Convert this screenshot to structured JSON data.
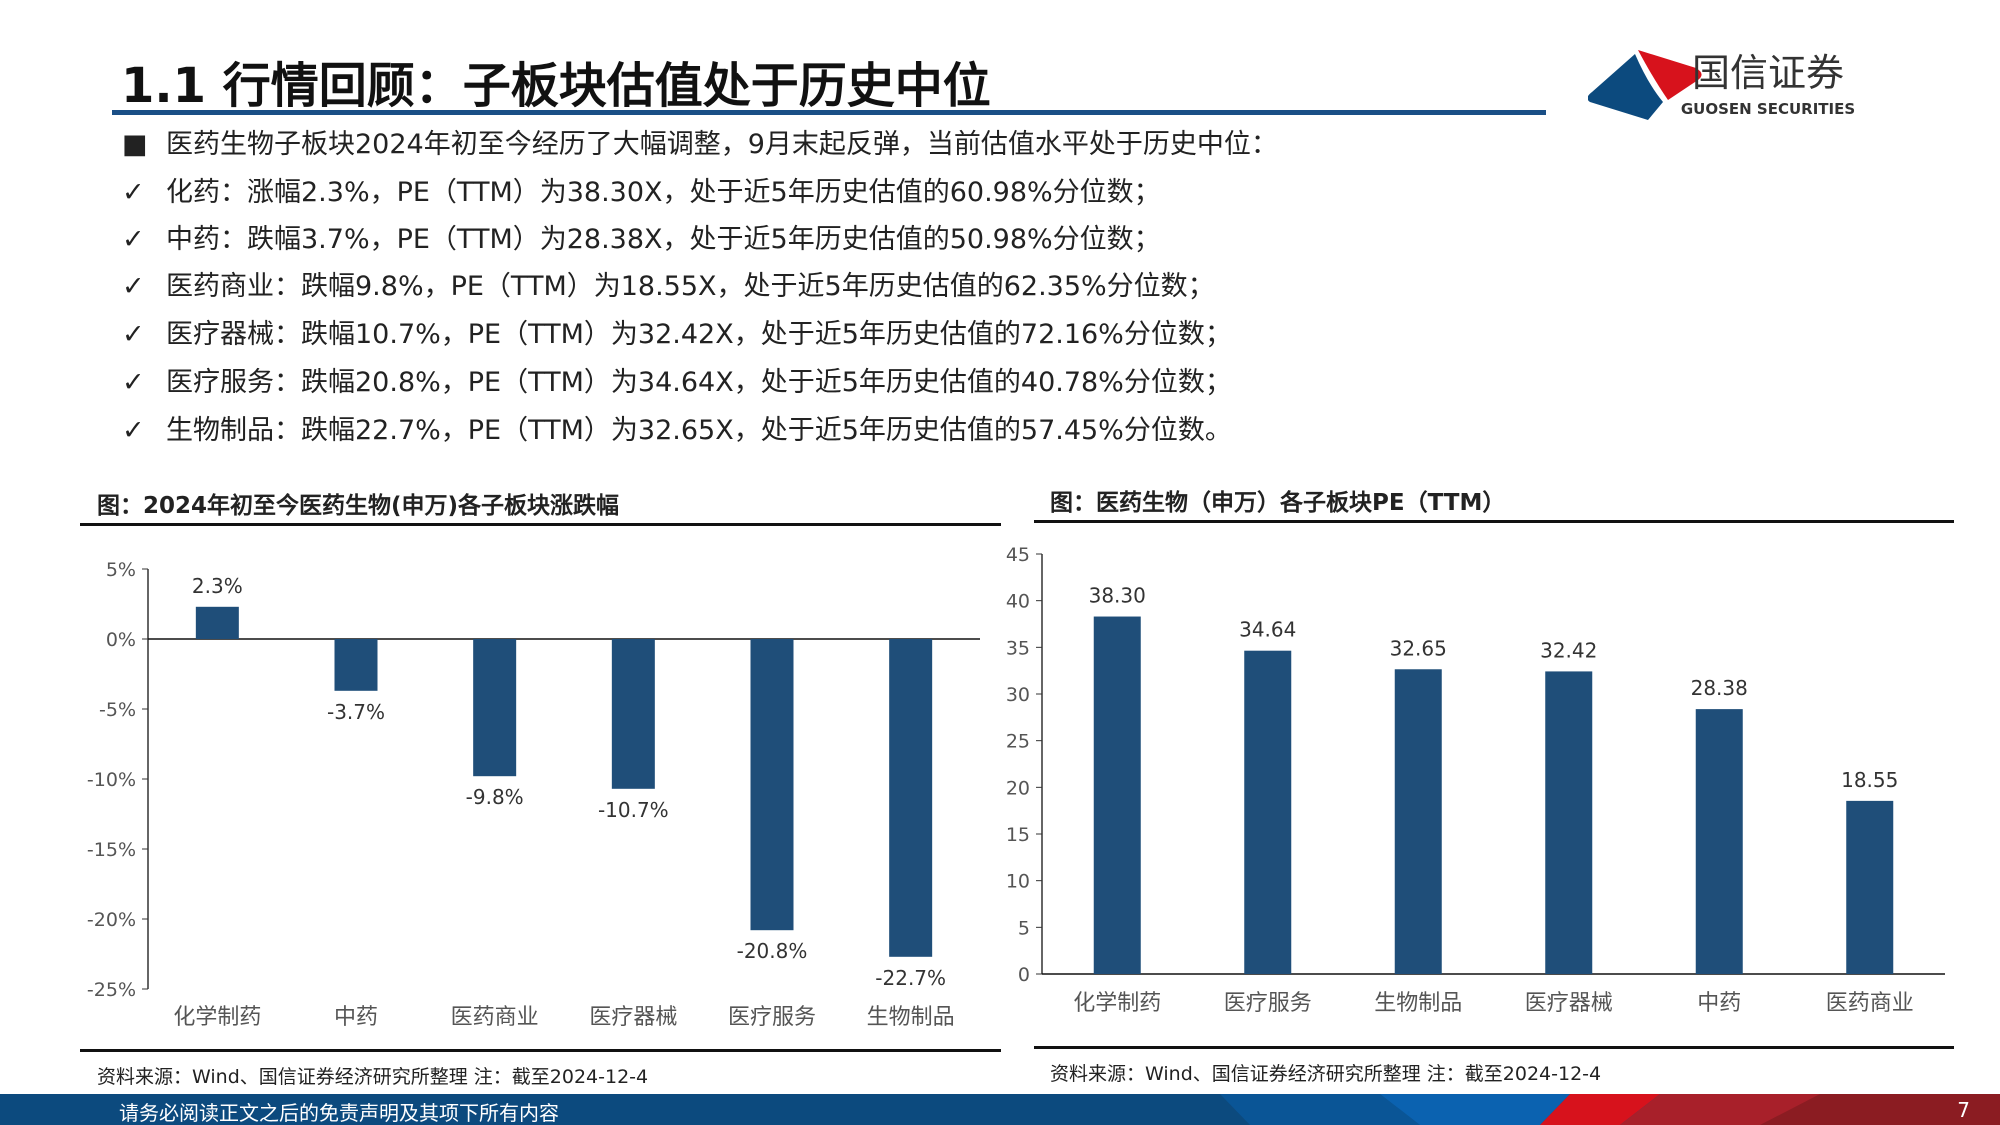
{
  "header": {
    "title": "1.1 行情回顾：子板块估值处于历史中位",
    "logo_cn": "国信证券",
    "logo_en": "GUOSEN SECURITIES",
    "colors": {
      "red": "#d7121c",
      "blue": "#0c4a7e"
    }
  },
  "bullets": [
    {
      "mark": "■",
      "text": "医药生物子板块2024年初至今经历了大幅调整，9月末起反弹，当前估值水平处于历史中位："
    },
    {
      "mark": "✓",
      "text": "化药：涨幅2.3%，PE（TTM）为38.30X，处于近5年历史估值的60.98%分位数；"
    },
    {
      "mark": "✓",
      "text": "中药：跌幅3.7%，PE（TTM）为28.38X，处于近5年历史估值的50.98%分位数；"
    },
    {
      "mark": "✓",
      "text": "医药商业：跌幅9.8%，PE（TTM）为18.55X，处于近5年历史估值的62.35%分位数；"
    },
    {
      "mark": "✓",
      "text": "医疗器械：跌幅10.7%，PE（TTM）为32.42X，处于近5年历史估值的72.16%分位数；"
    },
    {
      "mark": "✓",
      "text": "医疗服务：跌幅20.8%，PE（TTM）为34.64X，处于近5年历史估值的40.78%分位数；"
    },
    {
      "mark": "✓",
      "text": "生物制品：跌幅22.7%，PE（TTM）为32.65X，处于近5年历史估值的57.45%分位数。"
    }
  ],
  "chart_data": [
    {
      "type": "bar",
      "title": "图：2024年初至今医药生物(申万)各子板块涨跌幅",
      "categories": [
        "化学制药",
        "中药",
        "医药商业",
        "医疗器械",
        "医疗服务",
        "生物制品"
      ],
      "values": [
        2.3,
        -3.7,
        -9.8,
        -10.7,
        -20.8,
        -22.7
      ],
      "labels": [
        "2.3%",
        "-3.7%",
        "-9.8%",
        "-10.7%",
        "-20.8%",
        "-22.7%"
      ],
      "ylim": [
        -25,
        5
      ],
      "yticks": [
        "5%",
        "0%",
        "-5%",
        "-10%",
        "-15%",
        "-20%",
        "-25%"
      ],
      "bar_color": "#1f4e79",
      "source": "资料来源：Wind、国信证券经济研究所整理 注：截至2024-12-4"
    },
    {
      "type": "bar",
      "title": "图：医药生物（申万）各子板块PE（TTM）",
      "categories": [
        "化学制药",
        "医疗服务",
        "生物制品",
        "医疗器械",
        "中药",
        "医药商业"
      ],
      "values": [
        38.3,
        34.64,
        32.65,
        32.42,
        28.38,
        18.55
      ],
      "labels": [
        "38.30",
        "34.64",
        "32.65",
        "32.42",
        "28.38",
        "18.55"
      ],
      "ylim": [
        0,
        45
      ],
      "yticks": [
        "45",
        "40",
        "35",
        "30",
        "25",
        "20",
        "15",
        "10",
        "5",
        "0"
      ],
      "bar_color": "#1f4e79",
      "source": "资料来源：Wind、国信证券经济研究所整理 注：截至2024-12-4"
    }
  ],
  "footer": {
    "disclaimer": "请务必阅读正文之后的免责声明及其项下所有内容",
    "page": "7"
  }
}
